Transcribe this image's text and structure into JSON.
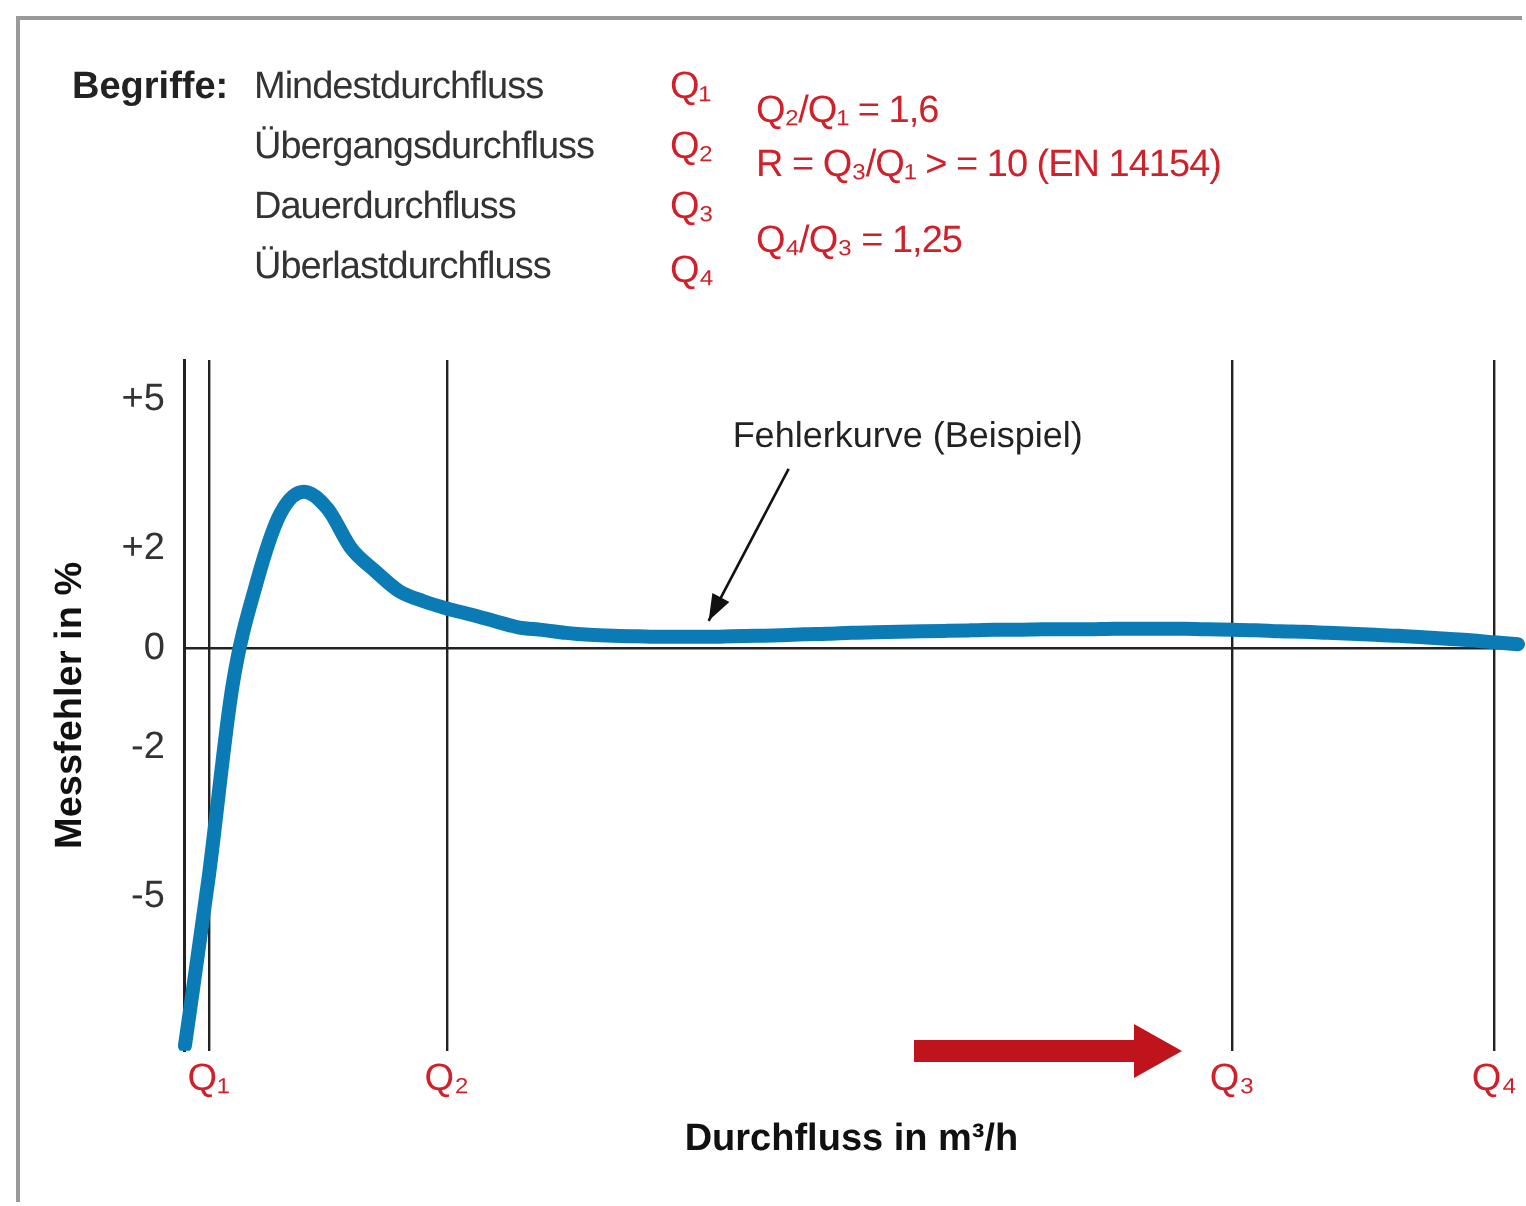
{
  "chart_data": {
    "type": "line",
    "title": "Begriffe:",
    "xlabel": "Durchfluss in m³/h",
    "ylabel": "Messfehler in %",
    "annotations": [
      "Mindestdurchfluss",
      "Übergangsdurchfluss",
      "Dauerdurchfluss",
      "Überlastdurchfluss",
      "Q₁",
      "Q₂",
      "Q₃",
      "Q₄",
      "Q₂/Q₁ = 1,6",
      "R = Q₃/Q₁ > = 10 (EN 14154)",
      "Q₄/Q₃ = 1,25",
      "Fehlerkurve (Beispiel)"
    ],
    "categories": [
      null,
      "Q₁",
      null,
      null,
      null,
      null,
      null,
      null,
      null,
      null,
      null,
      "Q₂",
      null,
      null,
      null,
      null,
      null,
      null,
      null,
      null,
      null,
      null,
      null,
      null,
      null,
      null,
      null,
      null,
      null,
      null,
      null,
      null,
      null,
      null,
      null,
      null,
      null,
      null,
      null,
      null,
      null,
      null,
      null,
      null,
      "Q₃",
      null,
      null,
      null,
      null,
      null,
      null,
      null,
      null,
      null,
      null,
      "Q₄",
      null
    ],
    "series": [
      {
        "color": "#0a7bb5",
        "values": [
          -8,
          -4.6,
          -0.75,
          1.3,
          2.7,
          3.15,
          2.8,
          2,
          1.55,
          1.15,
          0.95,
          0.8,
          0.68,
          0.55,
          0.42,
          0.37,
          0.31,
          0.27,
          0.25,
          0.24,
          0.23,
          0.23,
          0.23,
          0.24,
          0.25,
          0.26,
          0.28,
          0.29,
          0.31,
          0.32,
          0.33,
          0.34,
          0.35,
          0.36,
          0.37,
          0.37,
          0.38,
          0.38,
          0.38,
          0.39,
          0.39,
          0.39,
          0.39,
          0.38,
          0.37,
          0.36,
          0.34,
          0.33,
          0.31,
          0.29,
          0.27,
          0.25,
          0.22,
          0.19,
          0.16,
          0.12,
          0.08
        ]
      }
    ],
    "ylim": [
      -8.1,
      5.8
    ],
    "yticks": [
      {
        "value": 5,
        "label": "+5"
      },
      {
        "value": 2,
        "label": "+2"
      },
      0,
      -2,
      -5
    ],
    "grid": "x",
    "ref_lines": [
      {
        "axis": "y",
        "value": 0
      }
    ],
    "marker": "none",
    "line_style": "solid"
  }
}
